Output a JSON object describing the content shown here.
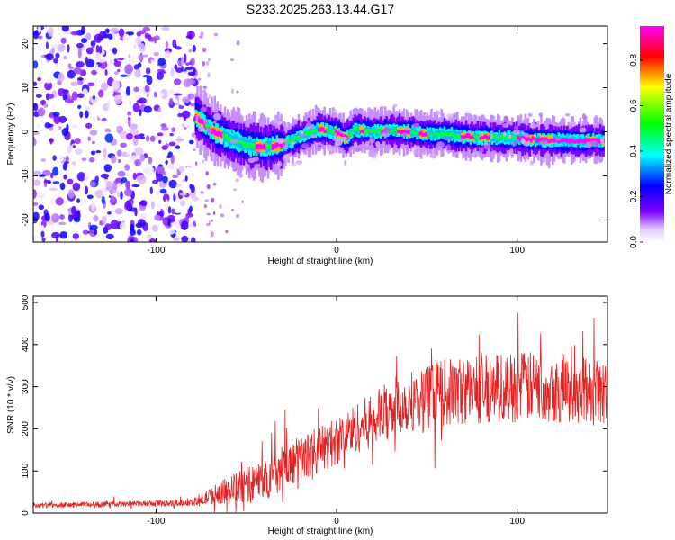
{
  "figure_title": "S233.2025.263.13.44.G17",
  "chart_data": [
    {
      "type": "heatmap",
      "xlabel": "Height of straight line (km)",
      "ylabel": "Frequency (Hz)",
      "xlim": [
        -168,
        150
      ],
      "ylim": [
        -25,
        24
      ],
      "xticks": [
        -100,
        0,
        100
      ],
      "xtick_labels": [
        "-100",
        "0",
        "100"
      ],
      "yticks": [
        -20,
        -10,
        0,
        10,
        20
      ],
      "ytick_labels": [
        "-20",
        "-10",
        "0",
        "10",
        "20"
      ],
      "noise_region_x": [
        -168,
        -80
      ],
      "ridge": {
        "description_points_x": [
          -78,
          -70,
          -60,
          -50,
          -40,
          -30,
          -20,
          -10,
          0,
          5,
          10,
          20,
          30,
          40,
          50,
          60,
          70,
          80,
          90,
          100,
          110,
          120,
          130,
          140,
          148
        ],
        "description_points_y": [
          3.5,
          0.5,
          -1.5,
          -3.0,
          -3.5,
          -3.0,
          -1.0,
          0.5,
          0.0,
          -1.5,
          0.5,
          0.0,
          0.3,
          0.0,
          -0.5,
          -0.5,
          -1.0,
          -1.2,
          -1.3,
          -1.4,
          -1.8,
          -1.9,
          -2.0,
          -2.0,
          -2.0
        ],
        "peak_amplitude": 0.95
      },
      "colorbar": {
        "label": "Normalized spectral amplitude",
        "range": [
          0.0,
          0.95
        ],
        "ticks": [
          0.0,
          0.2,
          0.4,
          0.6,
          0.8
        ],
        "tick_labels": [
          "0.0",
          "0.2",
          "0.4",
          "0.6",
          "0.8"
        ],
        "colormap": [
          "#ffffff",
          "#7f00ff",
          "#0000ff",
          "#00ffff",
          "#00ff00",
          "#ffff00",
          "#ff0000",
          "#ff00ff"
        ]
      }
    },
    {
      "type": "line",
      "xlabel": "Height of straight line (km)",
      "ylabel": "SNR (10 * v/v)",
      "xlim": [
        -168,
        150
      ],
      "ylim": [
        0,
        515
      ],
      "xticks": [
        -100,
        0,
        100
      ],
      "xtick_labels": [
        "-100",
        "0",
        "100"
      ],
      "yticks": [
        0,
        100,
        200,
        300,
        400,
        500
      ],
      "ytick_labels": [
        "0",
        "100",
        "200",
        "300",
        "400",
        "500"
      ],
      "color": "#e52020",
      "trend_x": [
        -168,
        -140,
        -100,
        -80,
        -75,
        -70,
        -60,
        -50,
        -40,
        -30,
        -20,
        -10,
        0,
        10,
        20,
        30,
        40,
        60,
        80,
        100,
        120,
        140,
        150
      ],
      "trend_y": [
        18,
        20,
        22,
        25,
        30,
        40,
        55,
        65,
        80,
        105,
        130,
        150,
        170,
        200,
        220,
        250,
        265,
        285,
        295,
        300,
        298,
        290,
        285
      ],
      "spread_x": [
        -168,
        -80,
        -70,
        -50,
        -30,
        -10,
        10,
        30,
        60,
        100,
        150
      ],
      "spread_y": [
        6,
        8,
        20,
        45,
        55,
        55,
        60,
        70,
        80,
        85,
        80
      ]
    }
  ]
}
